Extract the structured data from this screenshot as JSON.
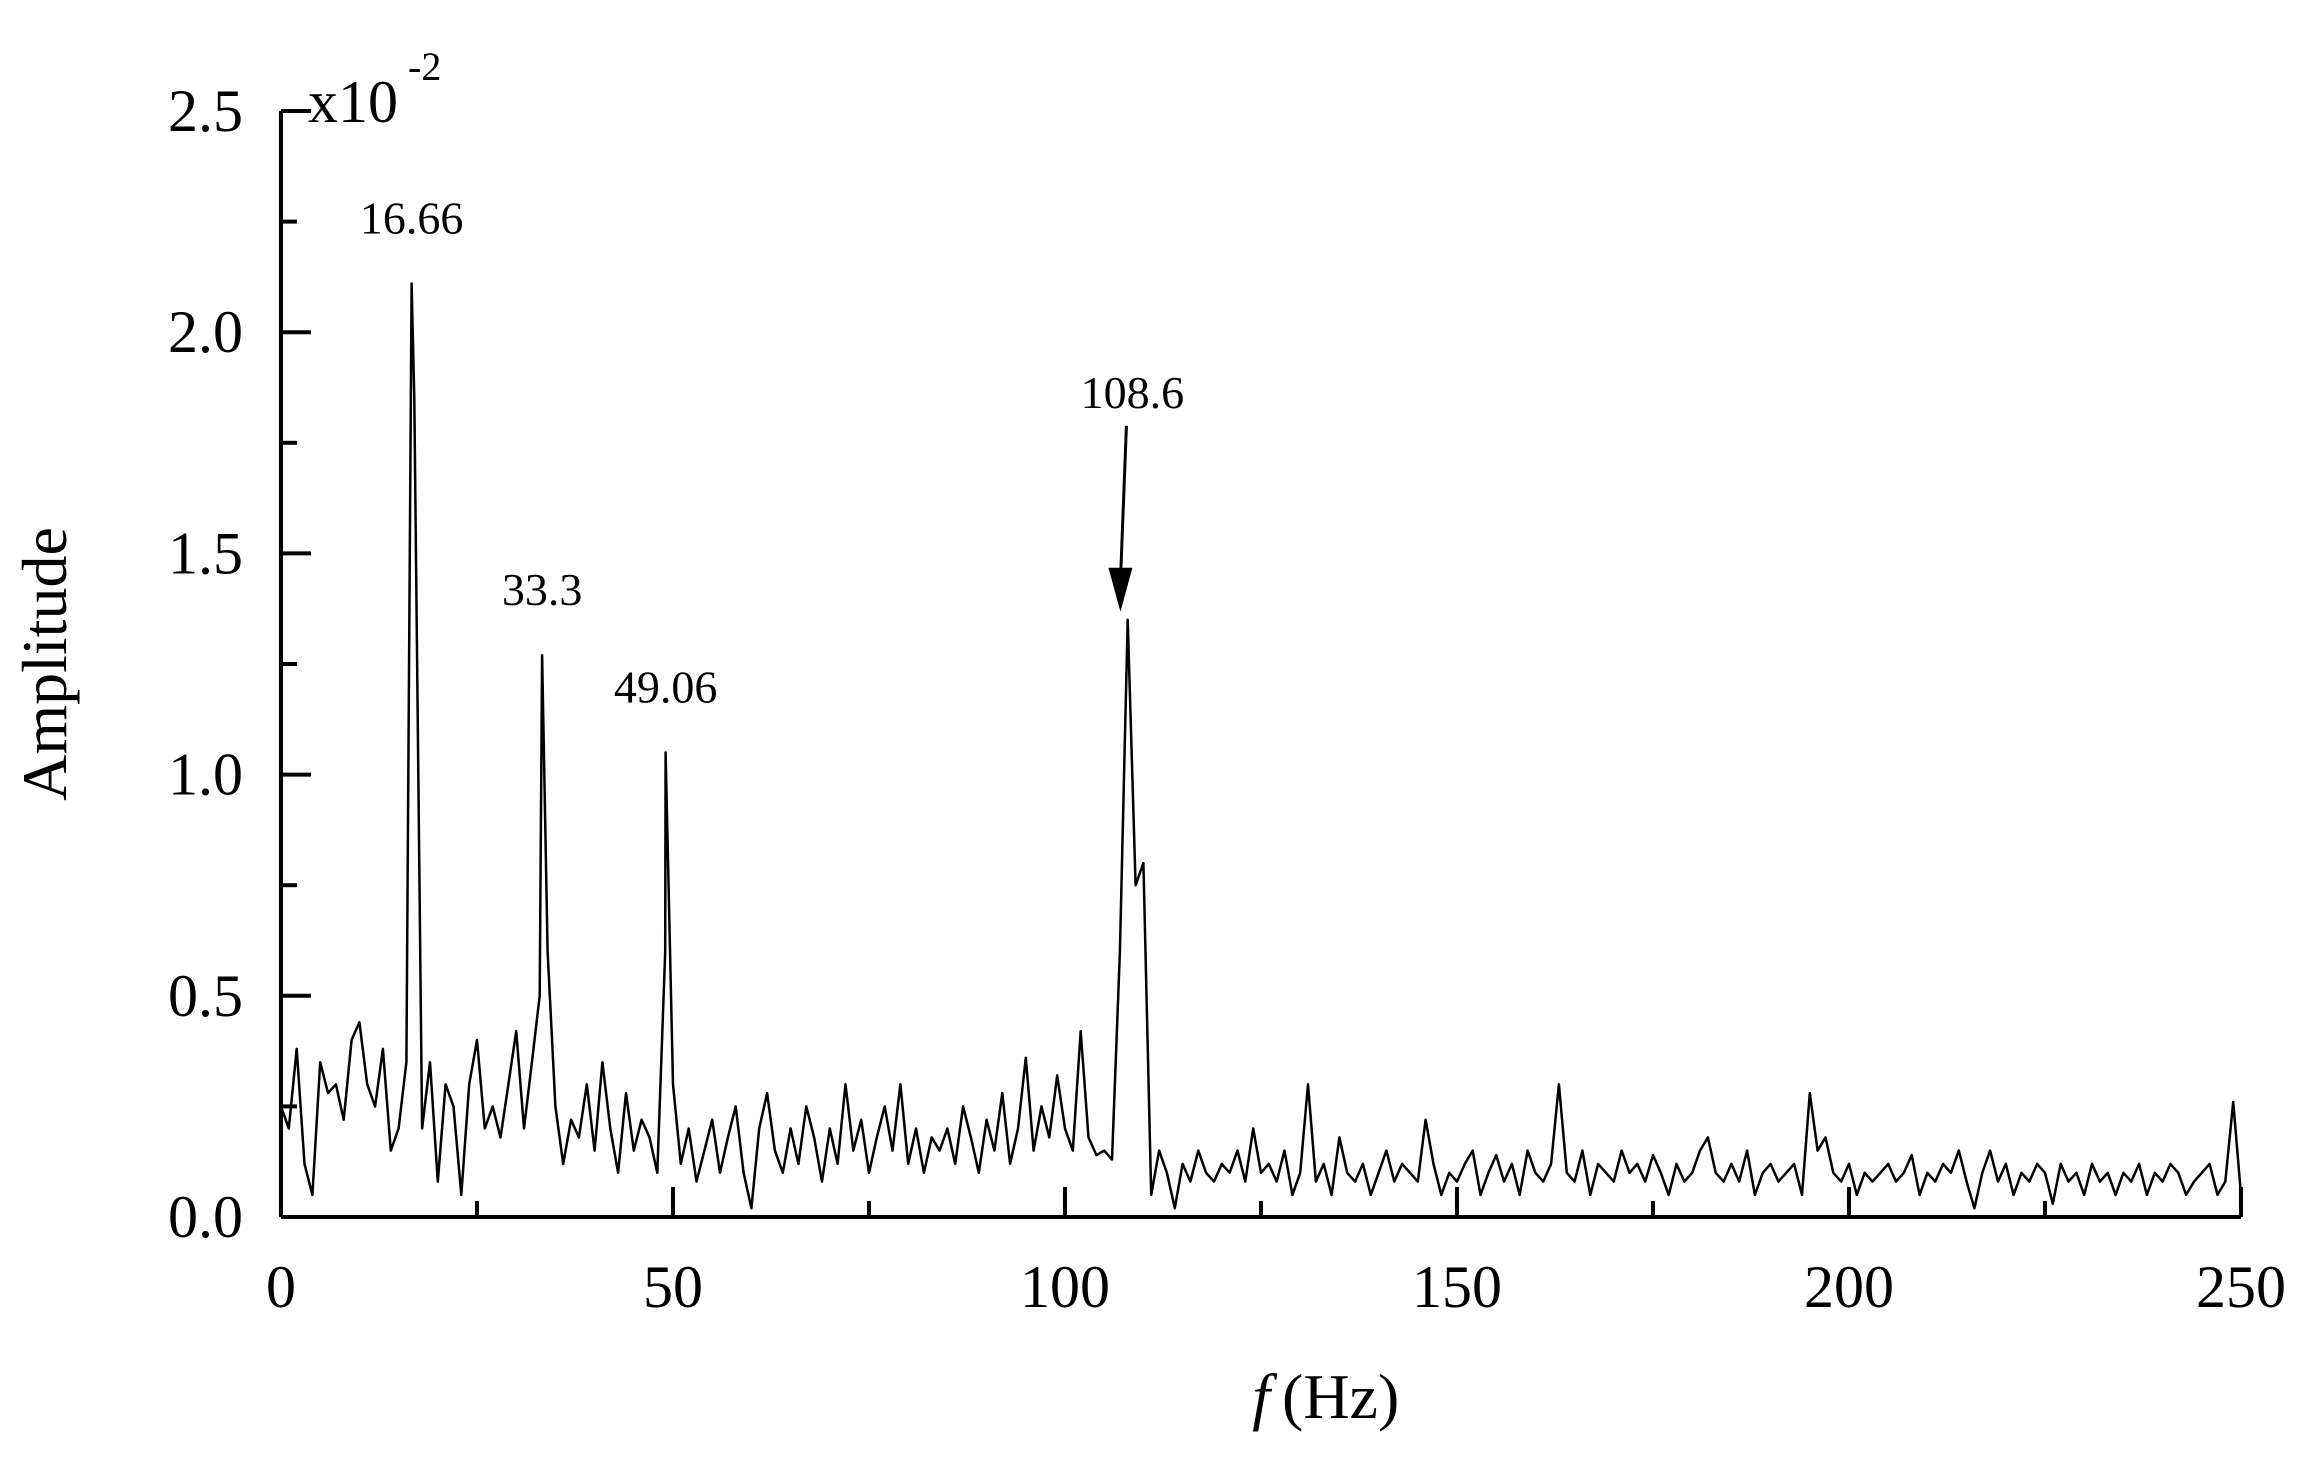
{
  "chart_data": {
    "type": "line",
    "ylabel": "Amplitude",
    "xlabel_symbol": "f",
    "xlabel_unit": "(Hz)",
    "y_multiplier": {
      "base": "x10",
      "exponent": "-2"
    },
    "color": "#000000",
    "xlim": [
      0,
      250
    ],
    "ylim": [
      0,
      2.5
    ],
    "xticks": [
      0,
      50,
      100,
      150,
      200,
      250
    ],
    "xticks_minor": [
      25,
      75,
      125,
      175,
      225
    ],
    "yticks": [
      {
        "value": 0,
        "label": "0.0"
      },
      0.5,
      {
        "value": 1,
        "label": "1.0"
      },
      1.5,
      {
        "value": 2,
        "label": "2.0"
      },
      2.5
    ],
    "yticks_minor": [
      0.25,
      0.75,
      1.25,
      1.75,
      2.25
    ],
    "annotations": [
      {
        "x": 16.66
      },
      {
        "x": 33.3
      },
      {
        "x": 49.06
      },
      {
        "x": 108.6,
        "arrow": true
      }
    ],
    "x": [
      0,
      1,
      2,
      3,
      4,
      5,
      6,
      7,
      8,
      9,
      10,
      11,
      12,
      13,
      14,
      15,
      16,
      16.66,
      17,
      18,
      19,
      20,
      21,
      22,
      23,
      24,
      25,
      26,
      27,
      28,
      29,
      30,
      31,
      32,
      33,
      33.3,
      34,
      35,
      36,
      37,
      38,
      39,
      40,
      41,
      42,
      43,
      44,
      45,
      46,
      47,
      48,
      49,
      49.06,
      50,
      51,
      52,
      53,
      54,
      55,
      56,
      57,
      58,
      59,
      60,
      61,
      62,
      63,
      64,
      65,
      66,
      67,
      68,
      69,
      70,
      71,
      72,
      73,
      74,
      75,
      76,
      77,
      78,
      79,
      80,
      81,
      82,
      83,
      84,
      85,
      86,
      87,
      88,
      89,
      90,
      91,
      92,
      93,
      94,
      95,
      96,
      97,
      98,
      99,
      100,
      101,
      102,
      103,
      104,
      105,
      106,
      107,
      108,
      109,
      110,
      111,
      112,
      113,
      114,
      115,
      116,
      117,
      118,
      119,
      120,
      121,
      122,
      123,
      124,
      125,
      126,
      127,
      128,
      129,
      130,
      131,
      132,
      133,
      134,
      135,
      136,
      137,
      138,
      139,
      140,
      141,
      142,
      143,
      144,
      145,
      146,
      147,
      148,
      149,
      150,
      151,
      152,
      153,
      154,
      155,
      156,
      157,
      158,
      159,
      160,
      161,
      162,
      163,
      164,
      165,
      166,
      167,
      168,
      169,
      170,
      171,
      172,
      173,
      174,
      175,
      176,
      177,
      178,
      179,
      180,
      181,
      182,
      183,
      184,
      185,
      186,
      187,
      188,
      189,
      190,
      191,
      192,
      193,
      194,
      195,
      196,
      197,
      198,
      199,
      200,
      201,
      202,
      203,
      204,
      205,
      206,
      207,
      208,
      209,
      210,
      211,
      212,
      213,
      214,
      215,
      216,
      217,
      218,
      219,
      220,
      221,
      222,
      223,
      224,
      225,
      226,
      227,
      228,
      229,
      230,
      231,
      232,
      233,
      234,
      235,
      236,
      237,
      238,
      239,
      240,
      241,
      242,
      243,
      244,
      245,
      246,
      247,
      248,
      249,
      250
    ],
    "values": [
      0.25,
      0.2,
      0.38,
      0.12,
      0.05,
      0.35,
      0.28,
      0.3,
      0.22,
      0.4,
      0.44,
      0.3,
      0.25,
      0.38,
      0.15,
      0.2,
      0.35,
      2.11,
      1.85,
      0.2,
      0.35,
      0.08,
      0.3,
      0.25,
      0.05,
      0.3,
      0.4,
      0.2,
      0.25,
      0.18,
      0.3,
      0.42,
      0.2,
      0.35,
      0.5,
      1.27,
      0.6,
      0.25,
      0.12,
      0.22,
      0.18,
      0.3,
      0.15,
      0.35,
      0.2,
      0.1,
      0.28,
      0.15,
      0.22,
      0.18,
      0.1,
      0.6,
      1.05,
      0.3,
      0.12,
      0.2,
      0.08,
      0.15,
      0.22,
      0.1,
      0.18,
      0.25,
      0.1,
      0.02,
      0.2,
      0.28,
      0.15,
      0.1,
      0.2,
      0.12,
      0.25,
      0.18,
      0.08,
      0.2,
      0.12,
      0.3,
      0.15,
      0.22,
      0.1,
      0.18,
      0.25,
      0.15,
      0.3,
      0.12,
      0.2,
      0.1,
      0.18,
      0.15,
      0.2,
      0.12,
      0.25,
      0.18,
      0.1,
      0.22,
      0.15,
      0.28,
      0.12,
      0.2,
      0.36,
      0.15,
      0.25,
      0.18,
      0.32,
      0.2,
      0.15,
      0.42,
      0.18,
      0.14,
      0.15,
      0.13,
      0.6,
      1.35,
      0.75,
      0.8,
      0.05,
      0.15,
      0.1,
      0.02,
      0.12,
      0.08,
      0.15,
      0.1,
      0.08,
      0.12,
      0.1,
      0.15,
      0.08,
      0.2,
      0.1,
      0.12,
      0.08,
      0.15,
      0.05,
      0.1,
      0.3,
      0.08,
      0.12,
      0.05,
      0.18,
      0.1,
      0.08,
      0.12,
      0.05,
      0.1,
      0.15,
      0.08,
      0.12,
      0.1,
      0.08,
      0.22,
      0.12,
      0.05,
      0.1,
      0.08,
      0.12,
      0.15,
      0.05,
      0.1,
      0.14,
      0.08,
      0.12,
      0.05,
      0.15,
      0.1,
      0.08,
      0.12,
      0.3,
      0.1,
      0.08,
      0.15,
      0.05,
      0.12,
      0.1,
      0.08,
      0.15,
      0.1,
      0.12,
      0.08,
      0.14,
      0.1,
      0.05,
      0.12,
      0.08,
      0.1,
      0.15,
      0.18,
      0.1,
      0.08,
      0.12,
      0.08,
      0.15,
      0.05,
      0.1,
      0.12,
      0.08,
      0.1,
      0.12,
      0.05,
      0.28,
      0.15,
      0.18,
      0.1,
      0.08,
      0.12,
      0.05,
      0.1,
      0.08,
      0.1,
      0.12,
      0.08,
      0.1,
      0.14,
      0.05,
      0.1,
      0.08,
      0.12,
      0.1,
      0.15,
      0.08,
      0.02,
      0.1,
      0.15,
      0.08,
      0.12,
      0.05,
      0.1,
      0.08,
      0.12,
      0.1,
      0.03,
      0.12,
      0.08,
      0.1,
      0.05,
      0.12,
      0.08,
      0.1,
      0.05,
      0.1,
      0.08,
      0.12,
      0.05,
      0.1,
      0.08,
      0.12,
      0.1,
      0.05,
      0.08,
      0.1,
      0.12,
      0.05,
      0.08,
      0.26,
      0.05
    ]
  }
}
